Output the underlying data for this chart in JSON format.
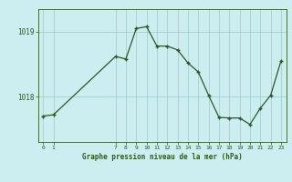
{
  "x_values": [
    0,
    1,
    7,
    8,
    9,
    10,
    11,
    12,
    13,
    14,
    15,
    16,
    17,
    18,
    19,
    20,
    21,
    22,
    23
  ],
  "y_values": [
    1017.7,
    1017.72,
    1018.62,
    1018.58,
    1019.05,
    1019.08,
    1018.78,
    1018.78,
    1018.72,
    1018.52,
    1018.38,
    1018.02,
    1017.68,
    1017.67,
    1017.67,
    1017.57,
    1017.82,
    1018.02,
    1018.55
  ],
  "line_color": "#2d5a1b",
  "marker_color": "#2d5a1b",
  "bg_color": "#cceef0",
  "grid_color": "#99cccc",
  "yticks": [
    1018,
    1019
  ],
  "xticks": [
    0,
    1,
    7,
    8,
    9,
    10,
    11,
    12,
    13,
    14,
    15,
    16,
    17,
    18,
    19,
    20,
    21,
    22,
    23
  ],
  "xlabel": "Graphe pression niveau de la mer (hPa)",
  "ylim": [
    1017.3,
    1019.35
  ],
  "xlim": [
    -0.5,
    23.5
  ],
  "figsize": [
    3.2,
    2.0
  ],
  "dpi": 100
}
